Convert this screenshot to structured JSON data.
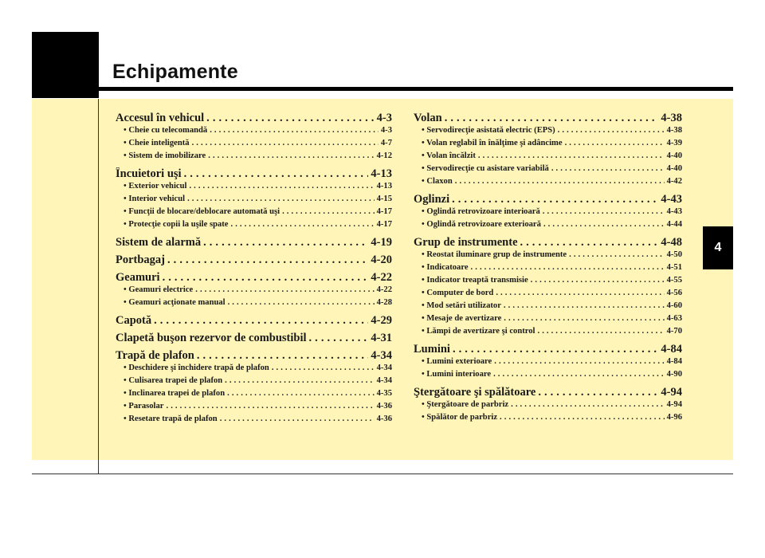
{
  "header": {
    "title": "Echipamente",
    "chapter_tab": "4"
  },
  "toc": {
    "left": [
      {
        "title": "Accesul în vehicul",
        "page": "4-3",
        "items": [
          {
            "title": "Cheie cu telecomandă",
            "page": "4-3"
          },
          {
            "title": "Cheie inteligentă",
            "page": "4-7"
          },
          {
            "title": "Sistem de imobilizare",
            "page": "4-12"
          }
        ]
      },
      {
        "title": "Încuietori uşi",
        "page": "4-13",
        "items": [
          {
            "title": "Exterior vehicul",
            "page": "4-13"
          },
          {
            "title": "Interior vehicul",
            "page": "4-15"
          },
          {
            "title": "Funcţii de blocare/deblocare automată uşi",
            "page": "4-17"
          },
          {
            "title": "Protecţie copii la uşile spate",
            "page": "4-17"
          }
        ]
      },
      {
        "title": "Sistem de alarmă",
        "page": "4-19",
        "items": []
      },
      {
        "title": "Portbagaj",
        "page": "4-20",
        "items": []
      },
      {
        "title": "Geamuri",
        "page": "4-22",
        "items": [
          {
            "title": "Geamuri electrice",
            "page": "4-22"
          },
          {
            "title": "Geamuri acţionate manual",
            "page": "4-28"
          }
        ]
      },
      {
        "title": "Capotă",
        "page": "4-29",
        "items": []
      },
      {
        "title": "Clapetă buşon rezervor de combustibil",
        "page": "4-31",
        "items": []
      },
      {
        "title": "Trapă de plafon",
        "page": "4-34",
        "items": [
          {
            "title": "Deschidere şi închidere trapă de plafon",
            "page": "4-34"
          },
          {
            "title": "Culisarea trapei de plafon",
            "page": "4-34"
          },
          {
            "title": "Înclinarea trapei de plafon",
            "page": "4-35"
          },
          {
            "title": "Parasolar",
            "page": "4-36"
          },
          {
            "title": "Resetare trapă de plafon",
            "page": "4-36"
          }
        ]
      }
    ],
    "right": [
      {
        "title": "Volan",
        "page": "4-38",
        "items": [
          {
            "title": "Servodirecţie asistată electric (EPS)",
            "page": "4-38"
          },
          {
            "title": "Volan reglabil în înălţime şi adâncime",
            "page": "4-39"
          },
          {
            "title": "Volan încălzit",
            "page": "4-40"
          },
          {
            "title": "Servodirecţie cu asistare variabilă",
            "page": "4-40"
          },
          {
            "title": "Claxon",
            "page": "4-42"
          }
        ]
      },
      {
        "title": "Oglinzi",
        "page": "4-43",
        "items": [
          {
            "title": "Oglindă retrovizoare interioară",
            "page": "4-43"
          },
          {
            "title": "Oglindă retrovizoare exterioară",
            "page": "4-44"
          }
        ]
      },
      {
        "title": "Grup de instrumente",
        "page": "4-48",
        "items": [
          {
            "title": "Reostat iluminare grup de instrumente",
            "page": "4-50"
          },
          {
            "title": "Indicatoare",
            "page": "4-51"
          },
          {
            "title": "Indicator treaptă transmisie",
            "page": "4-55"
          },
          {
            "title": "Computer de bord",
            "page": "4-56"
          },
          {
            "title": "Mod setări utilizator",
            "page": "4-60"
          },
          {
            "title": "Mesaje de avertizare",
            "page": "4-63"
          },
          {
            "title": "Lămpi de avertizare şi control",
            "page": "4-70"
          }
        ]
      },
      {
        "title": "Lumini",
        "page": "4-84",
        "items": [
          {
            "title": "Lumini exterioare",
            "page": "4-84"
          },
          {
            "title": "Lumini interioare",
            "page": "4-90"
          }
        ]
      },
      {
        "title": "Ştergătoare şi spălătoare",
        "page": "4-94",
        "items": [
          {
            "title": "Ştergătoare de parbriz",
            "page": "4-94"
          },
          {
            "title": "Spălător de parbriz",
            "page": "4-96"
          }
        ]
      }
    ]
  },
  "colors": {
    "toc_background": "#fff5b8",
    "text": "#1a1a1a",
    "header_block": "#000000"
  }
}
